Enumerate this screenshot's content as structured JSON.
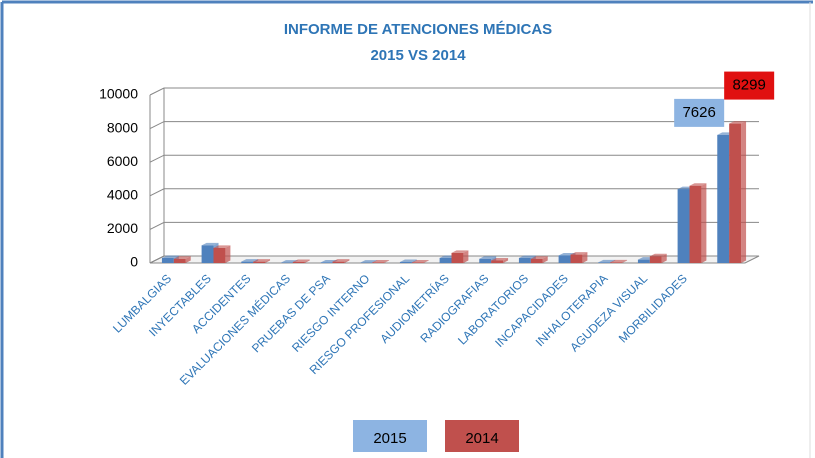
{
  "chart_data": {
    "type": "bar3d",
    "title": "INFORME DE ATENCIONES MÉDICAS",
    "subtitle": "2015 VS 2014",
    "categories": [
      "LUMBALGIAS",
      "INYECTABLES",
      "ACCIDENTES",
      "EVALUACIONES MÉDICAS",
      "PRUEBAS DE PSA",
      "RIESGO INTERNO",
      "RIESGO PROFESIONAL",
      "AUDIOMETRÍAS",
      "RADIOGRAFIAS",
      "LABORATORIOS",
      "INCAPACIDADES",
      "INHALOTERAPIA",
      "AGUDEZA VISUAL",
      "MORBILIDADES",
      null
    ],
    "series": [
      {
        "name": "2015",
        "color": "#4f81bd",
        "label_color": "#8db4e2",
        "values": [
          300,
          1050,
          80,
          20,
          30,
          20,
          60,
          300,
          250,
          300,
          450,
          40,
          200,
          4400,
          7626
        ]
      },
      {
        "name": "2014",
        "color": "#c0504d",
        "label_color": "#e01010",
        "values": [
          250,
          900,
          80,
          60,
          80,
          30,
          30,
          600,
          150,
          250,
          500,
          40,
          400,
          4600,
          8299
        ]
      }
    ],
    "ylim": [
      0,
      10000
    ],
    "yticks": [
      0,
      2000,
      4000,
      6000,
      8000,
      10000
    ],
    "grid": true,
    "legend": "bottom"
  }
}
